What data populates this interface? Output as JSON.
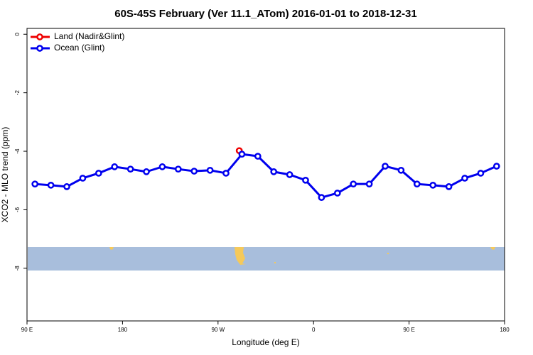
{
  "chart_data": {
    "type": "line",
    "title": "60S-45S February (Ver 11.1_ATom)   2016-01-01 to 2018-12-31",
    "x_label": "Longitude (deg E)",
    "y_label": "XCO2 - MLO trend (ppm)",
    "xlim": [
      90,
      540
    ],
    "xticks": [
      {
        "value": 90,
        "label": "90 E"
      },
      {
        "value": 180,
        "label": "180"
      },
      {
        "value": 270,
        "label": "90 W"
      },
      {
        "value": 360,
        "label": "0"
      },
      {
        "value": 450,
        "label": "90 E"
      },
      {
        "value": 540,
        "label": "180"
      }
    ],
    "ylim": [
      -9.8,
      0.2
    ],
    "yticks": [
      0,
      -2,
      -4,
      -6,
      -8
    ],
    "legend": "top-left",
    "series": [
      {
        "name": "Land (Nadir&Glint)",
        "color": "#ee0000",
        "x": [
          290
        ],
        "values": [
          -3.98
        ]
      },
      {
        "name": "Ocean (Glint)",
        "color": "#0000ee",
        "x": [
          97.5,
          112.5,
          127.5,
          142.5,
          157.5,
          172.5,
          187.5,
          202.5,
          217.5,
          232.5,
          247.5,
          262.5,
          277.5,
          292.5,
          307.5,
          322.5,
          337.5,
          352.5,
          367.5,
          382.5,
          397.5,
          412.5,
          427.5,
          442.5,
          457.5,
          472.5,
          487.5,
          502.5,
          517.5,
          532.5
        ],
        "values": [
          -5.12,
          -5.16,
          -5.21,
          -4.92,
          -4.75,
          -4.53,
          -4.61,
          -4.7,
          -4.53,
          -4.61,
          -4.68,
          -4.65,
          -4.75,
          -4.1,
          -4.17,
          -4.7,
          -4.8,
          -4.99,
          -5.58,
          -5.43,
          -5.12,
          -5.12,
          -4.51,
          -4.65,
          -5.12,
          -5.16,
          -5.21,
          -4.92,
          -4.75,
          -4.51
        ]
      }
    ]
  }
}
